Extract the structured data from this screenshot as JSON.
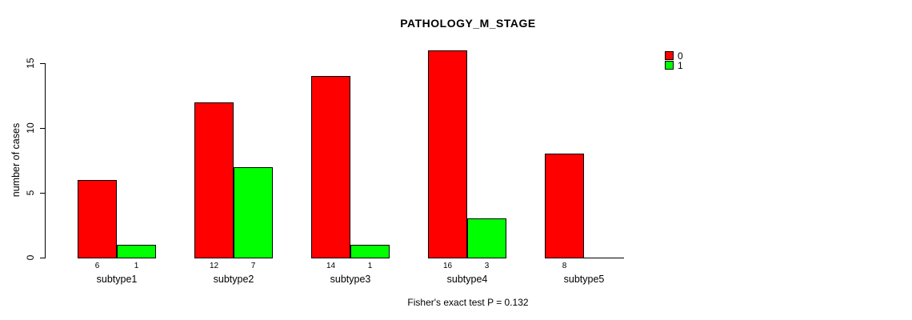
{
  "title": "PATHOLOGY_M_STAGE",
  "footer": "Fisher's exact test P = 0.132",
  "colors": {
    "series0": "#FF0000",
    "series1": "#00FF00",
    "axis": "#000000",
    "background": "#FFFFFF"
  },
  "chart_data": {
    "type": "bar",
    "title": "PATHOLOGY_M_STAGE",
    "ylabel": "number of cases",
    "xlabel": "",
    "categories": [
      "subtype1",
      "subtype2",
      "subtype3",
      "subtype4",
      "subtype5"
    ],
    "series": [
      {
        "name": "0",
        "color": "#FF0000",
        "values": [
          6,
          12,
          14,
          16,
          8
        ]
      },
      {
        "name": "1",
        "color": "#00FF00",
        "values": [
          1,
          7,
          1,
          3,
          0
        ]
      }
    ],
    "yticks": [
      0,
      5,
      10,
      15
    ],
    "ylim": [
      0,
      16
    ],
    "grid": false,
    "legend_position": "top-right",
    "bar_value_labels": true,
    "annotation": "Fisher's exact test P = 0.132"
  }
}
